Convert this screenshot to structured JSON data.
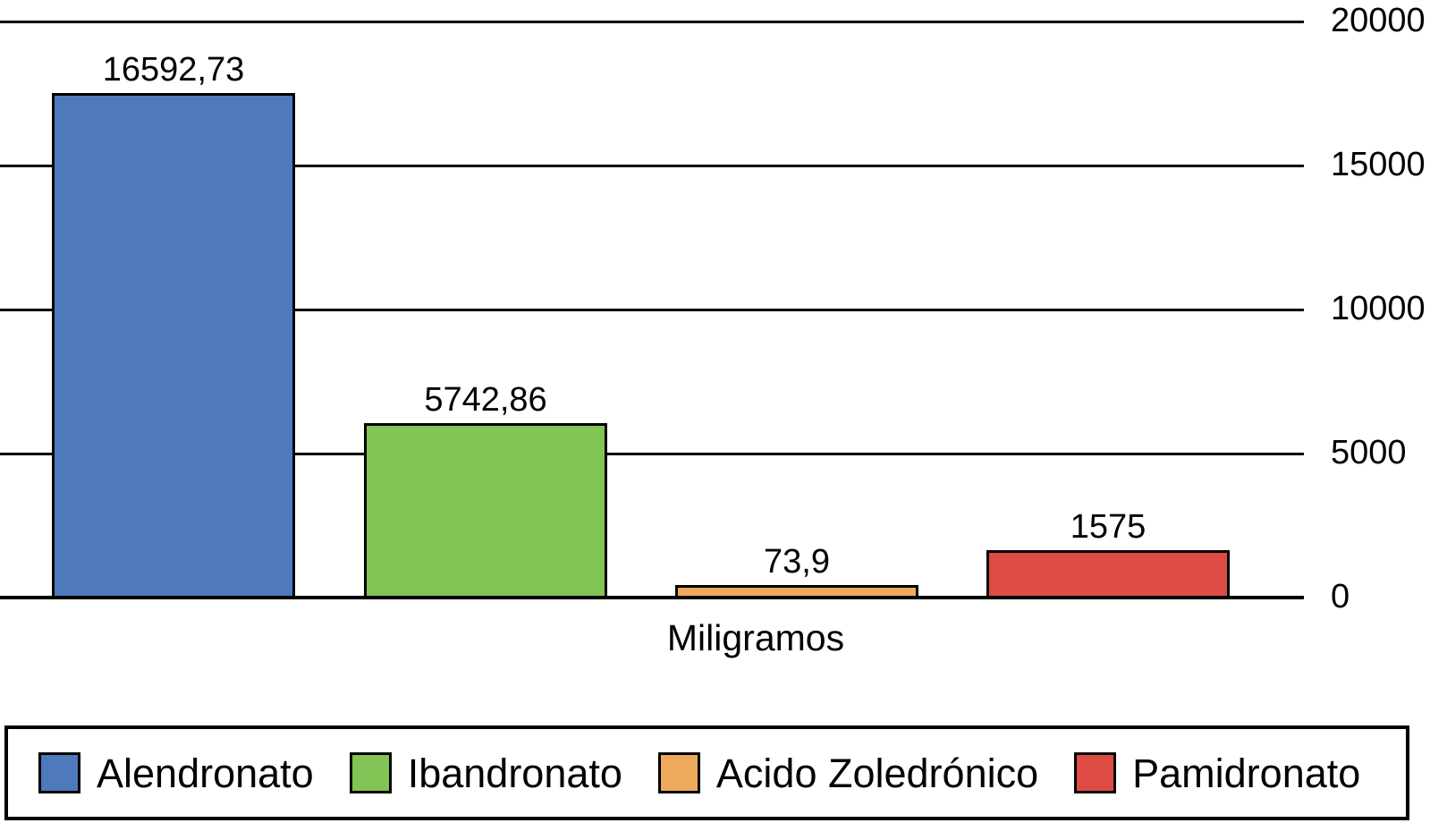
{
  "chart_data": {
    "type": "bar",
    "title": "",
    "xlabel": "Miligramos",
    "ylabel": "",
    "y_axis_side": "right",
    "ylim": [
      0,
      20000
    ],
    "y_ticks": [
      "20000",
      "15000",
      "10000",
      "5000",
      "0"
    ],
    "grid": true,
    "legend_position": "bottom-box",
    "categories": [
      "Alendronato",
      "Ibandronato",
      "Acido Zoledrónico",
      "Pamidronato"
    ],
    "values": [
      16592.73,
      5742.86,
      73.9,
      1575
    ],
    "value_labels": [
      "16592,73",
      "5742,86",
      "73,9",
      "1575"
    ],
    "bar_colors": [
      "#4E79BC",
      "#82C455",
      "#EDA95C",
      "#DF4B45"
    ],
    "bar_border_color": "#000000",
    "axis_color": "#000000",
    "text_color": "#000000",
    "legend": [
      {
        "label": "Alendronato",
        "color": "#4E79BC"
      },
      {
        "label": "Ibandronato",
        "color": "#82C455"
      },
      {
        "label": "Acido Zoledrónico",
        "color": "#EDA95C"
      },
      {
        "label": "Pamidronato",
        "color": "#DF4B45"
      }
    ]
  }
}
